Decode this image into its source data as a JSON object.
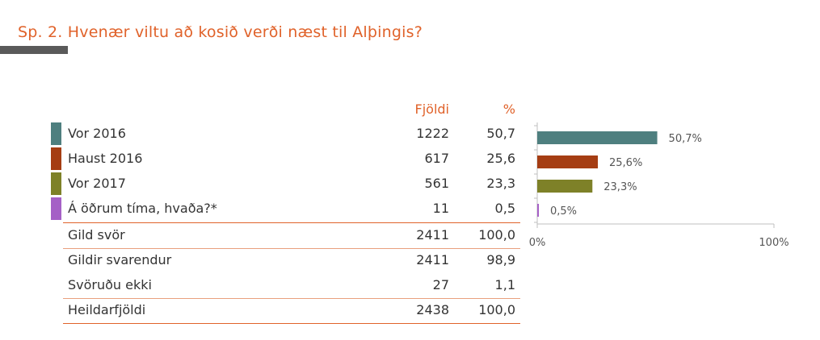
{
  "title": "Sp. 2.  Hvenær viltu að kosið verði næst til Alþingis?",
  "table": {
    "header_count": "Fjöldi",
    "header_pct": "%",
    "answer_rows": [
      {
        "label": "Vor 2016",
        "count": "1222",
        "pct": "50,7",
        "color": "#4e7f7f"
      },
      {
        "label": "Haust 2016",
        "count": "617",
        "pct": "25,6",
        "color": "#a53d13"
      },
      {
        "label": "Vor 2017",
        "count": "561",
        "pct": "23,3",
        "color": "#7e8128"
      },
      {
        "label": "Á öðrum tíma, hvaða?*",
        "count": "11",
        "pct": "0,5",
        "color": "#a560c6"
      }
    ],
    "summary_rows": [
      {
        "label": "Gild svör",
        "count": "2411",
        "pct": "100,0"
      },
      {
        "label": "Gildir svarendur",
        "count": "2411",
        "pct": "98,9"
      },
      {
        "label": "Svöruðu ekki",
        "count": "27",
        "pct": "1,1"
      },
      {
        "label": "Heildarfjöldi",
        "count": "2438",
        "pct": "100,0"
      }
    ]
  },
  "chart_data": {
    "type": "bar",
    "orientation": "horizontal",
    "categories": [
      "Vor 2016",
      "Haust 2016",
      "Vor 2017",
      "Á öðrum tíma, hvaða?*"
    ],
    "values": [
      50.7,
      25.6,
      23.3,
      0.5
    ],
    "data_labels": [
      "50,7%",
      "25,6%",
      "23,3%",
      "0,5%"
    ],
    "colors": [
      "#4e7f7f",
      "#a53d13",
      "#7e8128",
      "#a560c6"
    ],
    "xlim": [
      0,
      100
    ],
    "tick_labels": [
      "0%",
      "100%"
    ],
    "grid": false,
    "legend": "none"
  }
}
